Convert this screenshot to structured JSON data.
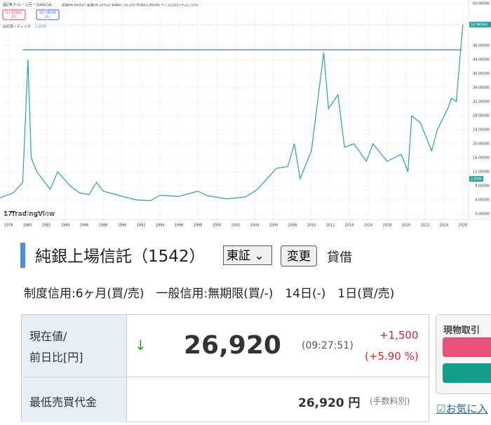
{
  "chart_data": {
    "type": "line",
    "title": "銀/米ドル・1月・OANDA",
    "subtitle": "始値46.66930 高値54.26915 安値45.91100 終値53.96540 +7.32355 (+15.70%)",
    "sell_price": "53.92541",
    "sell_label": "売り",
    "buy_price": "53.98008",
    "buy_label": "買い",
    "volume_label": "出来高・ティック",
    "volume_value": "2.81M",
    "watermark": "TradingView",
    "last_price_label": "53.96540",
    "color": "#26a69a",
    "level": 46.8,
    "level_color": "#4a72d6",
    "x": [
      1977,
      1978.5,
      1979.5,
      1980.05,
      1980.4,
      1981,
      1982.4,
      1983.2,
      1984.5,
      1985.5,
      1986.5,
      1987.3,
      1988,
      1990,
      1991.5,
      1993,
      1994,
      1996,
      1998,
      1999,
      2001,
      2003,
      2004.3,
      2006.3,
      2007.5,
      2008.2,
      2008.8,
      2010,
      2011.3,
      2011.8,
      2012.8,
      2013.5,
      2014.5,
      2015.8,
      2016.5,
      2018,
      2019.5,
      2020.2,
      2020.6,
      2021.5,
      2022.7,
      2023.3,
      2024.4,
      2024.8,
      2025.3,
      2025.8,
      2026
    ],
    "values": [
      4.5,
      6,
      9,
      44,
      16,
      12,
      7,
      12,
      8,
      6,
      5.5,
      9,
      6.5,
      5,
      4,
      3.8,
      5.3,
      5,
      6.5,
      5.2,
      4.3,
      4.8,
      7,
      13,
      13.5,
      20,
      10,
      18,
      46,
      30,
      34,
      19,
      20,
      15,
      20,
      15,
      17,
      12,
      28,
      26,
      18,
      24,
      30,
      33,
      32,
      48,
      54
    ],
    "xlim": [
      1977.1,
      2026.6
    ],
    "xticks": [
      1978,
      1980,
      1982,
      1984,
      1986,
      1988,
      1990,
      1992,
      1994,
      1996,
      1998,
      2000,
      2002,
      2004,
      2006,
      2008,
      2010,
      2012,
      2014,
      2016,
      2018,
      2020,
      2022,
      2024,
      2026
    ],
    "ylim": [
      0,
      60
    ],
    "yticks": [
      {
        "value": 0,
        "label": "0.00000"
      },
      {
        "value": 4,
        "label": "4.00000"
      },
      {
        "value": 8,
        "label": "8.00000"
      },
      {
        "value": 12,
        "label": "12.00000"
      },
      {
        "value": 16,
        "label": "16.00000"
      },
      {
        "value": 20,
        "label": "20.00000"
      },
      {
        "value": 24,
        "label": "24.00000"
      },
      {
        "value": 28,
        "label": "28.00000"
      },
      {
        "value": 32,
        "label": "32.00000"
      },
      {
        "value": 36,
        "label": "36.00000"
      },
      {
        "value": 40,
        "label": "40.00000"
      },
      {
        "value": 44,
        "label": "44.00000"
      },
      {
        "value": 48,
        "label": "48.00000"
      },
      {
        "value": 60,
        "label": "60.00000"
      }
    ],
    "grid": true
  },
  "page": {
    "title": "純銀上場信託（1542）",
    "market": "東証",
    "change_button": "変更",
    "lending": "貸借",
    "credit": "制度信用:6ヶ月(買/売)　一般信用:無期限(買/-)　14日(-)　1日(買/売)",
    "table": {
      "rows": [
        {
          "label1": "現在値/",
          "label2": "前日比[円]",
          "arrow": "↓",
          "price": "26,920",
          "time": "(09:27:51)",
          "change": "+1,500",
          "change_pct": "(+5.90 %)"
        },
        {
          "label": "最低売買代金",
          "amount": "26,920 円",
          "note": "(手数料別)"
        }
      ]
    },
    "side": {
      "title": "現物取引",
      "favorite": "お気に入"
    }
  }
}
